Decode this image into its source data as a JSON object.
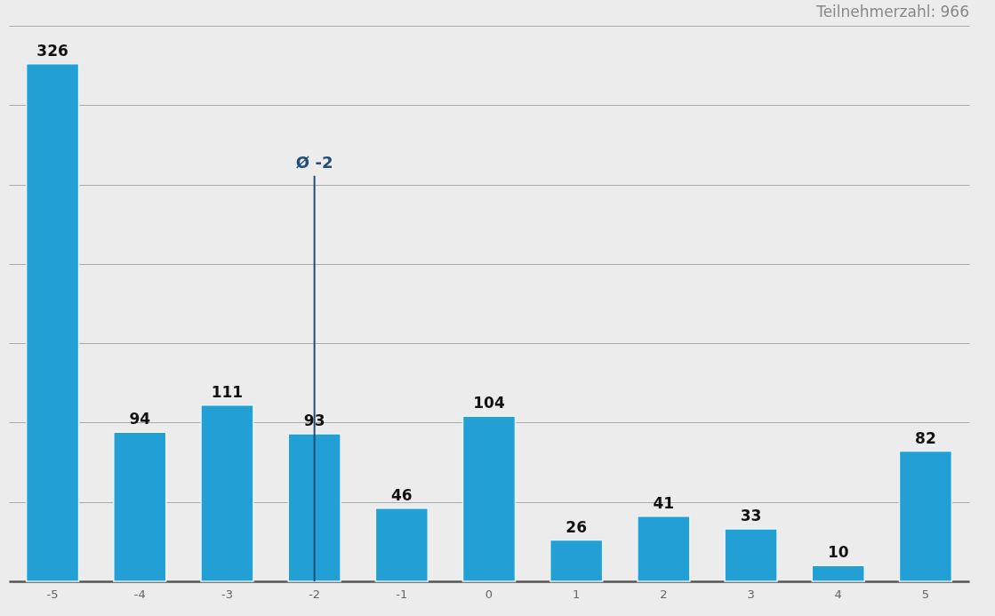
{
  "chart_data": {
    "type": "bar",
    "categories": [
      "-5",
      "-4",
      "-3",
      "-2",
      "-1",
      "0",
      "1",
      "2",
      "3",
      "4",
      "5"
    ],
    "values": [
      326,
      94,
      111,
      93,
      46,
      104,
      26,
      41,
      33,
      10,
      82
    ],
    "color": "#22a0d6",
    "data_labels": true,
    "ylim": [
      0,
      350
    ],
    "yticks": [
      {
        "value": 0,
        "label": null
      },
      {
        "value": 50,
        "label": null
      },
      {
        "value": 100,
        "label": null
      },
      {
        "value": 150,
        "label": null
      },
      {
        "value": 200,
        "label": null
      },
      {
        "value": 250,
        "label": null
      },
      {
        "value": 300,
        "label": null
      },
      {
        "value": 350,
        "label": null
      }
    ],
    "tick_labels": "x",
    "grid": "y",
    "ref_lines": [
      {
        "axis": "x",
        "value": "-2",
        "label": "Ø -2",
        "color": "#1f4e79"
      }
    ],
    "annotations": [
      "Teilnehmerzahl: 966"
    ]
  }
}
